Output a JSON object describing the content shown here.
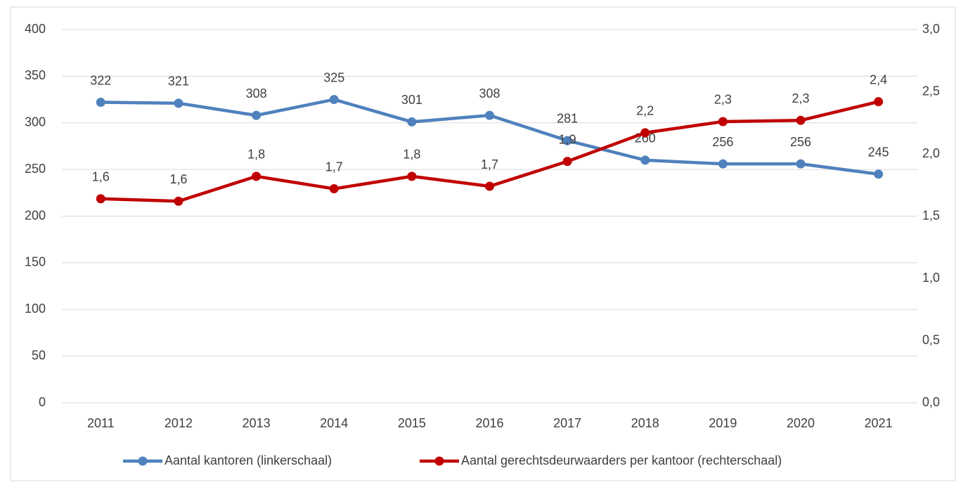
{
  "chart_data": {
    "type": "line",
    "categories": [
      "2011",
      "2012",
      "2013",
      "2014",
      "2015",
      "2016",
      "2017",
      "2018",
      "2019",
      "2020",
      "2021"
    ],
    "series": [
      {
        "name": "Aantal kantoren (linkerschaal)",
        "color": "#4f81bd",
        "axis": "y",
        "values": [
          322,
          321,
          308,
          325,
          301,
          308,
          281,
          260,
          256,
          256,
          245
        ]
      },
      {
        "name": "Aantal gerechtsdeurwaarders per kantoor (rechterschaal)",
        "color": "#c00000",
        "axis": "y2",
        "values": [
          1.64,
          1.62,
          1.82,
          1.72,
          1.82,
          1.74,
          1.94,
          2.17,
          2.26,
          2.27,
          2.42
        ],
        "value_labels": [
          "1,6",
          "1,6",
          "1,8",
          "1,7",
          "1,8",
          "1,7",
          "1,9",
          "2,2",
          "2,3",
          "2,3",
          "2,4"
        ]
      }
    ],
    "ylim": [
      0,
      400
    ],
    "yticks": [
      0,
      50,
      100,
      150,
      200,
      250,
      300,
      350,
      400
    ],
    "y2lim": [
      0,
      3
    ],
    "y2ticks": [
      {
        "value": 0,
        "label": "0,0"
      },
      {
        "value": 0.5,
        "label": "0,5"
      },
      {
        "value": 1,
        "label": "1,0"
      },
      {
        "value": 1.5,
        "label": "1,5"
      },
      {
        "value": 2,
        "label": "2,0"
      },
      {
        "value": 2.5,
        "label": "2,5"
      },
      {
        "value": 3,
        "label": "3,0"
      }
    ],
    "grid": true,
    "legend": "bottom"
  }
}
